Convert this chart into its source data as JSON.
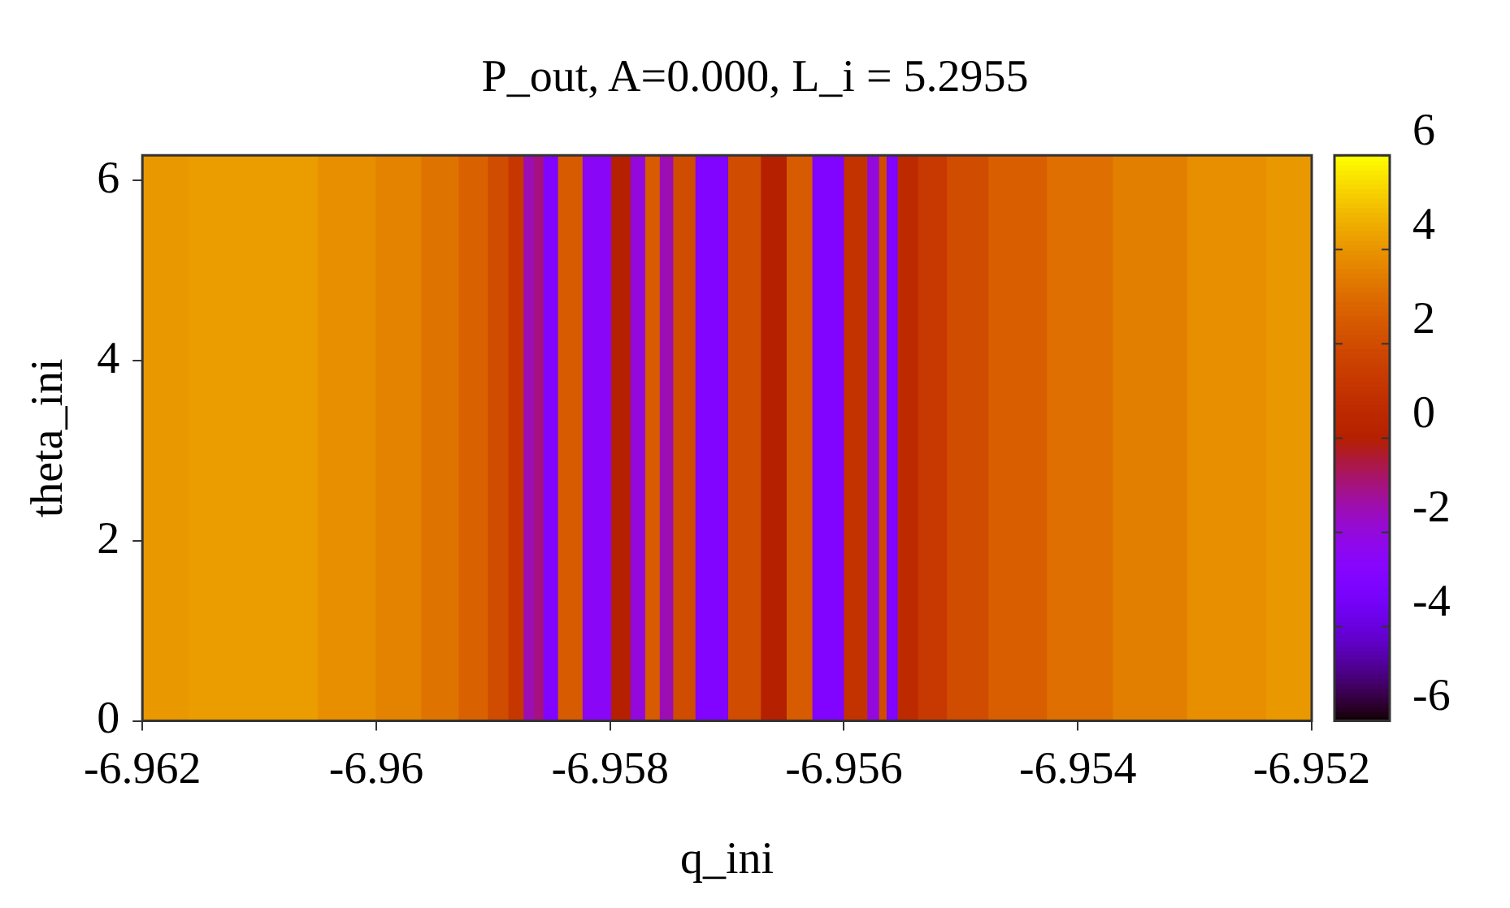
{
  "chart_data": {
    "type": "heatmap",
    "title": "P_out, A=0.000, L_i = 5.2955",
    "xlabel": "q_ini",
    "ylabel": "theta_ini",
    "x": [
      -6.96186,
      -6.96135,
      -6.96078,
      -6.96022,
      -6.95979,
      -6.95944,
      -6.95915,
      -6.95894,
      -6.9588,
      -6.95868,
      -6.95862,
      -6.95852,
      -6.95837,
      -6.9581,
      -6.95788,
      -6.95777,
      -6.95763,
      -6.95752,
      -6.9574,
      -6.95714,
      -6.95684,
      -6.95658,
      -6.9564,
      -6.95614,
      -6.95586,
      -6.95574,
      -6.95566,
      -6.95561,
      -6.95547,
      -6.95526,
      -6.95498,
      -6.95455,
      -6.95398,
      -6.95342,
      -6.95271,
      -6.95207
    ],
    "cells": [
      [
        4.1,
        4.2,
        4.2,
        3.9,
        3.6,
        3.2,
        2.7,
        2.0,
        1.2,
        -1.5,
        -1,
        -3,
        2.5,
        -2.5,
        0,
        -2,
        2.5,
        -1.5,
        2,
        -3,
        2,
        0,
        2.5,
        -3,
        1,
        -2,
        2,
        -3,
        0.6,
        1.3,
        2.0,
        2.6,
        3.1,
        3.5,
        3.9,
        4.1
      ]
    ],
    "xlim": [
      -6.962,
      -6.952
    ],
    "xticks": [
      -6.962,
      -6.96,
      -6.958,
      -6.956,
      -6.954,
      -6.952
    ],
    "ylim": [
      0,
      6.28
    ],
    "yticks": [
      0,
      2,
      4,
      6
    ],
    "clim": [
      -6,
      6
    ],
    "cticks": [
      -6,
      -4,
      -2,
      0,
      2,
      4,
      6
    ]
  }
}
